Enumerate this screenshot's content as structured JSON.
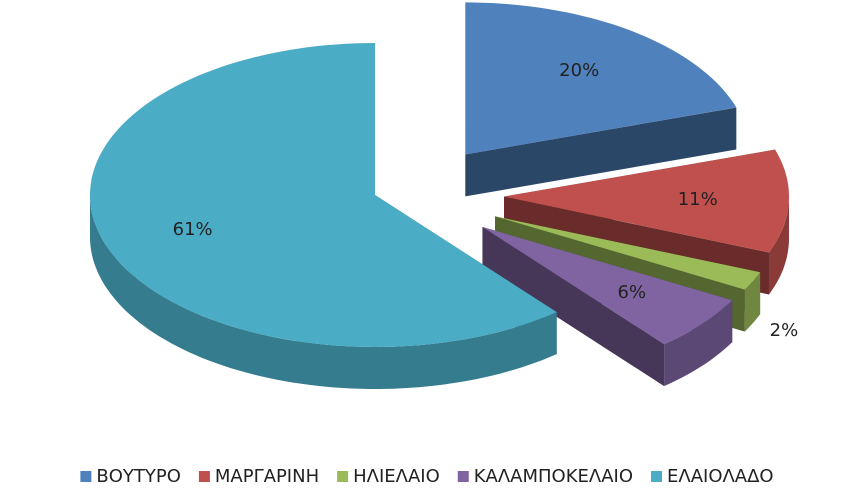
{
  "chart_data": {
    "type": "pie",
    "categories": [
      "ΒΟΥΤΥΡΟ",
      "ΜΑΡΓΑΡΙΝΗ",
      "ΗΛΙΕΛΑΙΟ",
      "ΚΑΛΑΜΠΟΚΕΛΑΙΟ",
      "ΕΛΑΙΟΛΑΔΟ"
    ],
    "values": [
      20,
      11,
      2,
      6,
      61
    ],
    "value_labels": [
      "20%",
      "11%",
      "2%",
      "6%",
      "61%"
    ],
    "colors": [
      "#4f81bd",
      "#c0504d",
      "#9bbb59",
      "#8064a2",
      "#4bacc6"
    ],
    "legend": "bottom"
  }
}
